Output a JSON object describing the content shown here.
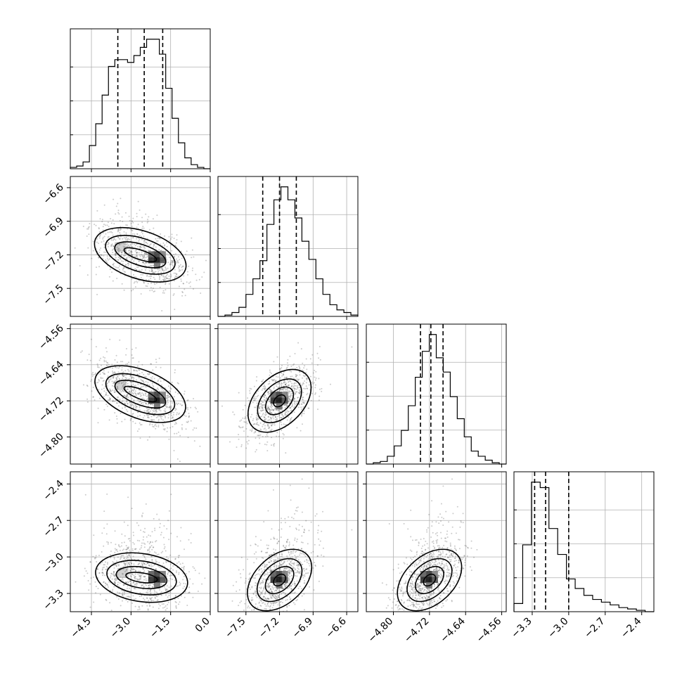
{
  "chart_data": {
    "type": "corner",
    "grid": true,
    "parameters": [
      {
        "index": 0,
        "range": [
          -5.3,
          0.0
        ],
        "ticks": [
          -4.5,
          -3.0,
          -1.5,
          0.0
        ],
        "tick_labels": [
          "−4.5",
          "−3.0",
          "−1.5",
          "0.0"
        ],
        "quantiles": [
          -3.5,
          -2.5,
          -1.8
        ],
        "histogram": [
          0.01,
          0.02,
          0.05,
          0.17,
          0.33,
          0.54,
          0.75,
          0.8,
          0.8,
          0.78,
          0.83,
          0.89,
          0.95,
          0.95,
          0.84,
          0.59,
          0.37,
          0.19,
          0.08,
          0.03,
          0.01,
          0.0
        ]
      },
      {
        "index": 1,
        "range": [
          -7.75,
          -6.5
        ],
        "ticks": [
          -7.5,
          -7.2,
          -6.9,
          -6.6
        ],
        "tick_labels": [
          "−7.5",
          "−7.2",
          "−6.9",
          "−6.6"
        ],
        "quantiles": [
          -7.35,
          -7.2,
          -7.05
        ],
        "histogram": [
          0.0,
          0.01,
          0.03,
          0.07,
          0.17,
          0.29,
          0.43,
          0.71,
          0.9,
          1.0,
          0.9,
          0.76,
          0.58,
          0.44,
          0.29,
          0.17,
          0.09,
          0.05,
          0.03,
          0.01
        ]
      },
      {
        "index": 2,
        "range": [
          -4.86,
          -4.55
        ],
        "ticks": [
          -4.8,
          -4.72,
          -4.64,
          -4.56
        ],
        "tick_labels": [
          "−4.80",
          "−4.72",
          "−4.64",
          "−4.56"
        ],
        "quantiles": [
          -4.74,
          -4.717,
          -4.69
        ],
        "histogram": [
          0.0,
          0.01,
          0.02,
          0.06,
          0.14,
          0.26,
          0.45,
          0.67,
          0.87,
          1.0,
          0.82,
          0.71,
          0.52,
          0.35,
          0.21,
          0.1,
          0.06,
          0.03,
          0.01,
          0.0
        ]
      },
      {
        "index": 3,
        "range": [
          -3.45,
          -2.3
        ],
        "ticks": [
          -3.3,
          -3.0,
          -2.7,
          -2.4
        ],
        "tick_labels": [
          "−3.3",
          "−3.0",
          "−2.7",
          "−2.4"
        ],
        "quantiles": [
          -3.28,
          -3.19,
          -3.0
        ],
        "histogram": [
          0.06,
          0.49,
          0.95,
          0.91,
          0.61,
          0.42,
          0.24,
          0.17,
          0.12,
          0.09,
          0.07,
          0.05,
          0.03,
          0.02,
          0.01,
          0.0
        ]
      }
    ],
    "pairs": [
      {
        "x": 0,
        "y": 1,
        "center": [
          -2.0,
          -7.25
        ],
        "peak2": [
          -3.3,
          -7.15
        ],
        "tilt": -0.35
      },
      {
        "x": 0,
        "y": 2,
        "center": [
          -2.0,
          -4.72
        ],
        "peak2": [
          -3.3,
          -4.69
        ],
        "tilt": -0.35
      },
      {
        "x": 1,
        "y": 2,
        "center": [
          -7.2,
          -4.72
        ],
        "peak2": null,
        "tilt": 0.55
      },
      {
        "x": 0,
        "y": 3,
        "center": [
          -2.0,
          -3.19
        ],
        "peak2": [
          -3.2,
          -3.15
        ],
        "tilt": -0.1
      },
      {
        "x": 1,
        "y": 3,
        "center": [
          -7.2,
          -3.19
        ],
        "peak2": null,
        "tilt": 0.5
      },
      {
        "x": 2,
        "y": 3,
        "center": [
          -4.72,
          -3.19
        ],
        "peak2": null,
        "tilt": 0.5
      }
    ]
  }
}
